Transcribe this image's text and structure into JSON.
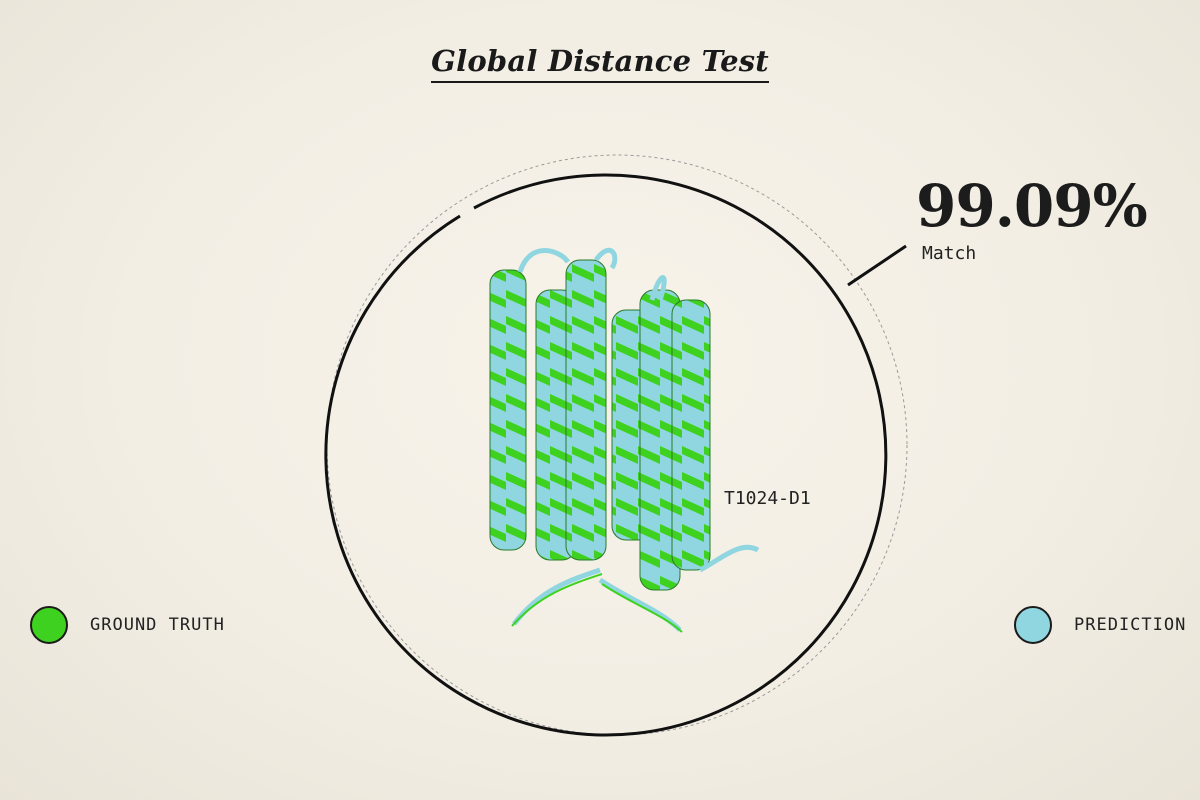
{
  "title": "Global Distance Test",
  "metric": {
    "value": "99.09%",
    "label": "Match"
  },
  "target_id": "T1024-D1",
  "legend": {
    "ground_truth": {
      "label": "GROUND TRUTH",
      "color": "#3fd11f"
    },
    "prediction": {
      "label": "PREDICTION",
      "color": "#8fd6e0"
    }
  },
  "colors": {
    "background": "#f3efe6",
    "ink": "#1a1a1a",
    "ground_truth_green": "#3fd11f",
    "prediction_blue": "#8fd6e0"
  },
  "structure": {
    "description_icon": "protein-helix-bundle-icon"
  }
}
